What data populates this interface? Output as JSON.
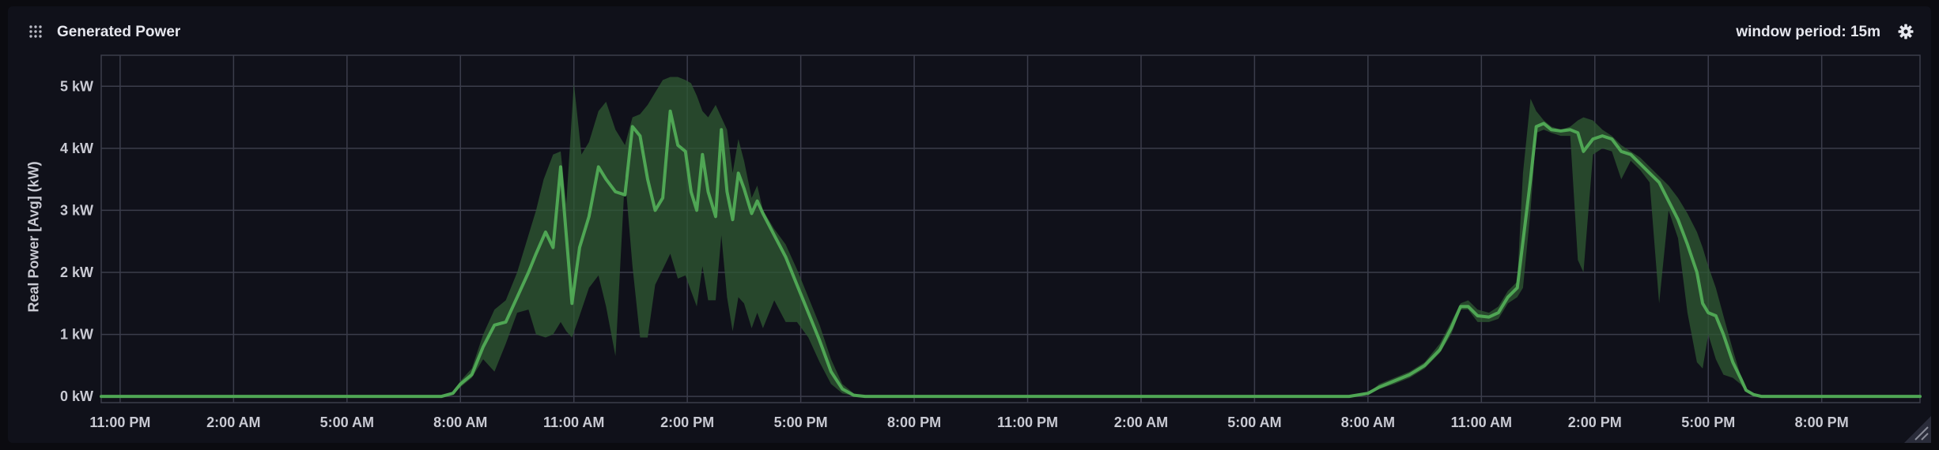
{
  "panel": {
    "title": "Generated Power",
    "window_period": "window period: 15m",
    "icons": {
      "drag": "drag-handle-icon",
      "settings": "gear-icon",
      "resize": "resize-handle-icon"
    }
  },
  "colors": {
    "background": "#10111a",
    "grid": "#3b3d4b",
    "line": "#4fa654",
    "band": "#2f5a33",
    "text": "#c9cad3"
  },
  "chart_data": {
    "type": "line",
    "title": "",
    "xlabel": "",
    "ylabel": "Real Power [Avg] (kW)",
    "y_ticks": [
      0,
      1,
      2,
      3,
      4,
      5
    ],
    "y_tick_labels": [
      "0 kW",
      "1 kW",
      "2 kW",
      "3 kW",
      "4 kW",
      "5 kW"
    ],
    "ylim": [
      -0.1,
      5.5
    ],
    "x_unit": "hours since 11:00 PM",
    "xlim": [
      -0.5,
      47.6
    ],
    "x_ticks": [
      0,
      3,
      6,
      9,
      12,
      15,
      18,
      21,
      24,
      27,
      30,
      33,
      36,
      39,
      42,
      45
    ],
    "x_tick_labels": [
      "11:00 PM",
      "2:00 AM",
      "5:00 AM",
      "8:00 AM",
      "11:00 AM",
      "2:00 PM",
      "5:00 PM",
      "8:00 PM",
      "11:00 PM",
      "2:00 AM",
      "5:00 AM",
      "8:00 AM",
      "11:00 AM",
      "2:00 PM",
      "5:00 PM",
      "8:00 PM"
    ],
    "grid": true,
    "legend": "none",
    "series": [
      {
        "role": "mean",
        "points": [
          [
            -0.5,
            0
          ],
          [
            8.5,
            0
          ],
          [
            8.8,
            0.05
          ],
          [
            9.0,
            0.2
          ],
          [
            9.3,
            0.35
          ],
          [
            9.6,
            0.8
          ],
          [
            9.9,
            1.15
          ],
          [
            10.2,
            1.2
          ],
          [
            10.5,
            1.6
          ],
          [
            10.8,
            2.0
          ],
          [
            11.0,
            2.3
          ],
          [
            11.25,
            2.65
          ],
          [
            11.45,
            2.4
          ],
          [
            11.65,
            3.7
          ],
          [
            11.8,
            2.6
          ],
          [
            11.95,
            1.5
          ],
          [
            12.15,
            2.4
          ],
          [
            12.4,
            2.9
          ],
          [
            12.65,
            3.7
          ],
          [
            12.85,
            3.5
          ],
          [
            13.1,
            3.3
          ],
          [
            13.35,
            3.25
          ],
          [
            13.55,
            4.35
          ],
          [
            13.75,
            4.2
          ],
          [
            13.95,
            3.5
          ],
          [
            14.15,
            3.0
          ],
          [
            14.35,
            3.2
          ],
          [
            14.55,
            4.6
          ],
          [
            14.75,
            4.05
          ],
          [
            14.95,
            3.95
          ],
          [
            15.1,
            3.3
          ],
          [
            15.25,
            3.0
          ],
          [
            15.4,
            3.9
          ],
          [
            15.55,
            3.3
          ],
          [
            15.75,
            2.9
          ],
          [
            15.9,
            4.3
          ],
          [
            16.05,
            3.3
          ],
          [
            16.2,
            2.85
          ],
          [
            16.35,
            3.6
          ],
          [
            16.5,
            3.35
          ],
          [
            16.7,
            2.95
          ],
          [
            16.85,
            3.15
          ],
          [
            17.0,
            2.95
          ],
          [
            17.3,
            2.6
          ],
          [
            17.6,
            2.25
          ],
          [
            17.9,
            1.8
          ],
          [
            18.2,
            1.35
          ],
          [
            18.5,
            0.9
          ],
          [
            18.8,
            0.4
          ],
          [
            19.1,
            0.12
          ],
          [
            19.4,
            0.02
          ],
          [
            19.7,
            0
          ],
          [
            32.5,
            0
          ],
          [
            33.0,
            0.05
          ],
          [
            33.3,
            0.15
          ],
          [
            33.7,
            0.25
          ],
          [
            34.1,
            0.35
          ],
          [
            34.5,
            0.5
          ],
          [
            34.9,
            0.75
          ],
          [
            35.2,
            1.1
          ],
          [
            35.45,
            1.45
          ],
          [
            35.65,
            1.45
          ],
          [
            35.9,
            1.3
          ],
          [
            36.2,
            1.28
          ],
          [
            36.45,
            1.35
          ],
          [
            36.7,
            1.6
          ],
          [
            36.95,
            1.75
          ],
          [
            37.1,
            2.5
          ],
          [
            37.3,
            3.5
          ],
          [
            37.45,
            4.35
          ],
          [
            37.65,
            4.4
          ],
          [
            37.85,
            4.3
          ],
          [
            38.1,
            4.28
          ],
          [
            38.35,
            4.3
          ],
          [
            38.55,
            4.25
          ],
          [
            38.7,
            3.95
          ],
          [
            38.95,
            4.15
          ],
          [
            39.2,
            4.2
          ],
          [
            39.45,
            4.15
          ],
          [
            39.7,
            3.95
          ],
          [
            39.95,
            3.9
          ],
          [
            40.2,
            3.75
          ],
          [
            40.45,
            3.6
          ],
          [
            40.7,
            3.45
          ],
          [
            40.95,
            3.15
          ],
          [
            41.2,
            2.85
          ],
          [
            41.45,
            2.45
          ],
          [
            41.7,
            2.0
          ],
          [
            41.85,
            1.5
          ],
          [
            42.0,
            1.35
          ],
          [
            42.2,
            1.3
          ],
          [
            42.4,
            1.0
          ],
          [
            42.65,
            0.55
          ],
          [
            42.85,
            0.3
          ],
          [
            43.0,
            0.1
          ],
          [
            43.2,
            0.03
          ],
          [
            43.4,
            0
          ],
          [
            47.6,
            0
          ]
        ]
      },
      {
        "role": "max",
        "points": [
          [
            -0.5,
            0
          ],
          [
            8.5,
            0
          ],
          [
            8.8,
            0.05
          ],
          [
            9.0,
            0.25
          ],
          [
            9.3,
            0.45
          ],
          [
            9.6,
            1.0
          ],
          [
            9.9,
            1.4
          ],
          [
            10.2,
            1.55
          ],
          [
            10.5,
            2.0
          ],
          [
            10.8,
            2.6
          ],
          [
            11.0,
            3.0
          ],
          [
            11.2,
            3.5
          ],
          [
            11.45,
            3.9
          ],
          [
            11.65,
            3.95
          ],
          [
            11.8,
            3.1
          ],
          [
            12.0,
            5.05
          ],
          [
            12.2,
            3.9
          ],
          [
            12.4,
            4.1
          ],
          [
            12.65,
            4.6
          ],
          [
            12.85,
            4.75
          ],
          [
            13.1,
            4.3
          ],
          [
            13.35,
            4.05
          ],
          [
            13.55,
            4.5
          ],
          [
            13.75,
            4.55
          ],
          [
            13.95,
            4.7
          ],
          [
            14.15,
            4.9
          ],
          [
            14.35,
            5.1
          ],
          [
            14.55,
            5.15
          ],
          [
            14.75,
            5.15
          ],
          [
            14.95,
            5.1
          ],
          [
            15.1,
            5.05
          ],
          [
            15.25,
            4.85
          ],
          [
            15.4,
            4.6
          ],
          [
            15.55,
            4.5
          ],
          [
            15.75,
            4.7
          ],
          [
            15.9,
            4.5
          ],
          [
            16.05,
            4.3
          ],
          [
            16.2,
            3.6
          ],
          [
            16.35,
            4.15
          ],
          [
            16.5,
            3.8
          ],
          [
            16.7,
            3.2
          ],
          [
            16.85,
            3.4
          ],
          [
            17.0,
            3.0
          ],
          [
            17.3,
            2.7
          ],
          [
            17.6,
            2.45
          ],
          [
            17.9,
            2.05
          ],
          [
            18.2,
            1.6
          ],
          [
            18.5,
            1.15
          ],
          [
            18.8,
            0.6
          ],
          [
            19.1,
            0.2
          ],
          [
            19.4,
            0.05
          ],
          [
            19.7,
            0
          ],
          [
            32.5,
            0
          ],
          [
            33.0,
            0.05
          ],
          [
            33.3,
            0.2
          ],
          [
            33.7,
            0.3
          ],
          [
            34.1,
            0.4
          ],
          [
            34.5,
            0.55
          ],
          [
            34.9,
            0.85
          ],
          [
            35.2,
            1.2
          ],
          [
            35.45,
            1.5
          ],
          [
            35.65,
            1.55
          ],
          [
            35.9,
            1.4
          ],
          [
            36.2,
            1.35
          ],
          [
            36.45,
            1.45
          ],
          [
            36.7,
            1.7
          ],
          [
            36.95,
            1.85
          ],
          [
            37.1,
            3.6
          ],
          [
            37.3,
            4.8
          ],
          [
            37.45,
            4.6
          ],
          [
            37.65,
            4.45
          ],
          [
            37.85,
            4.35
          ],
          [
            38.1,
            4.3
          ],
          [
            38.35,
            4.35
          ],
          [
            38.55,
            4.45
          ],
          [
            38.7,
            4.5
          ],
          [
            38.95,
            4.45
          ],
          [
            39.2,
            4.3
          ],
          [
            39.45,
            4.2
          ],
          [
            39.7,
            4.05
          ],
          [
            39.95,
            3.95
          ],
          [
            40.2,
            3.85
          ],
          [
            40.45,
            3.7
          ],
          [
            40.7,
            3.55
          ],
          [
            40.95,
            3.4
          ],
          [
            41.2,
            3.2
          ],
          [
            41.45,
            2.95
          ],
          [
            41.7,
            2.65
          ],
          [
            41.85,
            2.4
          ],
          [
            42.0,
            2.1
          ],
          [
            42.2,
            1.75
          ],
          [
            42.4,
            1.3
          ],
          [
            42.65,
            0.75
          ],
          [
            42.85,
            0.35
          ],
          [
            43.0,
            0.12
          ],
          [
            43.2,
            0.04
          ],
          [
            43.4,
            0
          ],
          [
            47.6,
            0
          ]
        ]
      },
      {
        "role": "min",
        "points": [
          [
            -0.5,
            0
          ],
          [
            8.5,
            0
          ],
          [
            8.8,
            0.04
          ],
          [
            9.0,
            0.15
          ],
          [
            9.3,
            0.3
          ],
          [
            9.6,
            0.6
          ],
          [
            9.9,
            0.4
          ],
          [
            10.2,
            0.85
          ],
          [
            10.5,
            1.35
          ],
          [
            10.8,
            1.4
          ],
          [
            11.0,
            1.0
          ],
          [
            11.25,
            0.95
          ],
          [
            11.45,
            1.0
          ],
          [
            11.65,
            1.2
          ],
          [
            11.8,
            1.05
          ],
          [
            11.95,
            0.95
          ],
          [
            12.15,
            1.3
          ],
          [
            12.4,
            1.75
          ],
          [
            12.65,
            1.95
          ],
          [
            12.85,
            1.45
          ],
          [
            13.1,
            0.65
          ],
          [
            13.35,
            3.55
          ],
          [
            13.55,
            2.1
          ],
          [
            13.75,
            0.95
          ],
          [
            13.95,
            0.95
          ],
          [
            14.15,
            1.8
          ],
          [
            14.35,
            2.05
          ],
          [
            14.55,
            2.3
          ],
          [
            14.75,
            1.9
          ],
          [
            14.95,
            1.95
          ],
          [
            15.1,
            1.7
          ],
          [
            15.25,
            1.45
          ],
          [
            15.4,
            2.1
          ],
          [
            15.55,
            1.55
          ],
          [
            15.75,
            1.55
          ],
          [
            15.9,
            2.6
          ],
          [
            16.05,
            1.6
          ],
          [
            16.2,
            1.05
          ],
          [
            16.35,
            1.6
          ],
          [
            16.5,
            1.5
          ],
          [
            16.7,
            1.1
          ],
          [
            16.85,
            1.35
          ],
          [
            17.0,
            1.1
          ],
          [
            17.3,
            1.55
          ],
          [
            17.6,
            1.2
          ],
          [
            17.9,
            1.2
          ],
          [
            18.2,
            0.95
          ],
          [
            18.5,
            0.55
          ],
          [
            18.8,
            0.2
          ],
          [
            19.1,
            0.05
          ],
          [
            19.4,
            0.01
          ],
          [
            19.7,
            0
          ],
          [
            32.5,
            0
          ],
          [
            33.0,
            0.04
          ],
          [
            33.3,
            0.12
          ],
          [
            33.7,
            0.2
          ],
          [
            34.1,
            0.3
          ],
          [
            34.5,
            0.45
          ],
          [
            34.9,
            0.7
          ],
          [
            35.2,
            1.0
          ],
          [
            35.45,
            1.4
          ],
          [
            35.65,
            1.4
          ],
          [
            35.9,
            1.2
          ],
          [
            36.2,
            1.2
          ],
          [
            36.45,
            1.25
          ],
          [
            36.7,
            1.5
          ],
          [
            36.95,
            1.6
          ],
          [
            37.1,
            1.75
          ],
          [
            37.3,
            3.0
          ],
          [
            37.45,
            4.25
          ],
          [
            37.65,
            4.3
          ],
          [
            37.85,
            4.25
          ],
          [
            38.1,
            4.2
          ],
          [
            38.35,
            4.2
          ],
          [
            38.55,
            2.2
          ],
          [
            38.7,
            2.0
          ],
          [
            38.95,
            3.9
          ],
          [
            39.2,
            4.0
          ],
          [
            39.45,
            3.95
          ],
          [
            39.7,
            3.5
          ],
          [
            39.95,
            3.8
          ],
          [
            40.2,
            3.65
          ],
          [
            40.45,
            3.45
          ],
          [
            40.7,
            1.5
          ],
          [
            40.95,
            3.0
          ],
          [
            41.2,
            2.55
          ],
          [
            41.45,
            1.35
          ],
          [
            41.7,
            0.55
          ],
          [
            41.85,
            0.45
          ],
          [
            42.0,
            1.0
          ],
          [
            42.2,
            0.6
          ],
          [
            42.4,
            0.35
          ],
          [
            42.65,
            0.3
          ],
          [
            42.85,
            0.2
          ],
          [
            43.0,
            0.08
          ],
          [
            43.2,
            0.02
          ],
          [
            43.4,
            0
          ],
          [
            47.6,
            0
          ]
        ]
      }
    ]
  }
}
